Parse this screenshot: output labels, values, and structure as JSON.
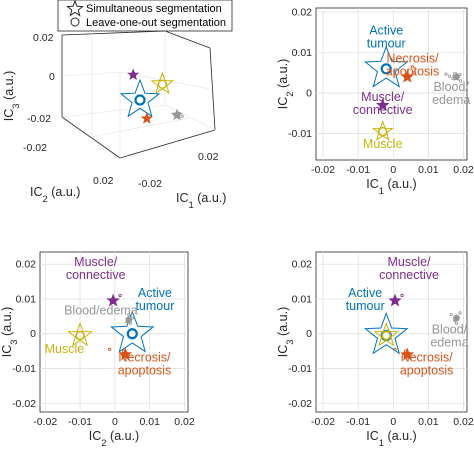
{
  "colors": {
    "active_tumour": "#0072BD",
    "necrosis": "#D95319",
    "muscle_connective": "#7E2F8E",
    "muscle": "#C9B50A",
    "blood": "#969696",
    "grid": "#dcdcdc",
    "axis": "#262626"
  },
  "legend": {
    "star_label": "Simultaneous segmentation",
    "circle_label": "Leave-one-out segmentation"
  },
  "chart_data": [
    {
      "id": "A",
      "type": "scatter3d",
      "xlabel": "IC_1 (a.u.)",
      "ylabel": "IC_2 (a.u.)",
      "zlabel": "IC_3 (a.u.)",
      "xlim": [
        -0.02,
        0.02
      ],
      "ylim": [
        -0.02,
        0.02
      ],
      "zlim": [
        -0.02,
        0.02
      ],
      "x_ticks": [
        "-0.02",
        "0.02"
      ],
      "y_ticks": [
        "-0.02",
        "0.02"
      ],
      "z_ticks": [
        "-0.02",
        "0",
        "0.02"
      ],
      "grid": true,
      "legend_position": "top",
      "series": [
        {
          "key": "active_tumour",
          "star": [
            0,
            0,
            0
          ],
          "circle": [
            0,
            0,
            0
          ]
        },
        {
          "key": "muscle",
          "star": [
            0.001,
            -0.011,
            0.001
          ],
          "circle": [
            0.001,
            -0.011,
            0.001
          ]
        },
        {
          "key": "muscle_connective",
          "star": [
            -0.004,
            -0.002,
            0.009
          ],
          "circle": [
            -0.004,
            -0.002,
            0.009
          ]
        },
        {
          "key": "necrosis",
          "star": [
            0.004,
            0.002,
            -0.006
          ],
          "circle": [
            0.004,
            0.002,
            -0.006
          ]
        },
        {
          "key": "blood",
          "star": [
            0.017,
            0.004,
            0.001
          ],
          "circle": [
            0.017,
            0.004,
            0.001
          ]
        }
      ]
    },
    {
      "id": "B",
      "type": "scatter",
      "xlabel": "IC_1 (a.u.)",
      "ylabel": "IC_2 (a.u.)",
      "xlim": [
        -0.022,
        0.021
      ],
      "ylim": [
        -0.0165,
        0.021
      ],
      "x_ticks": [
        -0.02,
        -0.01,
        0,
        0.01,
        0.02
      ],
      "y_ticks": [
        -0.01,
        0,
        0.01,
        0.02
      ],
      "tick_labels_x": [
        "-0.02",
        "-0.01",
        "0",
        "0.01",
        "0.02"
      ],
      "tick_labels_y": [
        "-0.01",
        "0",
        "0.01",
        "0.02"
      ],
      "grid": true,
      "series": [
        {
          "key": "active_tumour",
          "star": [
            -0.002,
            0.006
          ],
          "circle": [
            -0.002,
            0.006
          ],
          "star_size": 22
        },
        {
          "key": "necrosis",
          "star": [
            0.004,
            0.004
          ],
          "circle": [
            0.004,
            0.004
          ],
          "star_size": 6
        },
        {
          "key": "muscle_connective",
          "star": [
            -0.003,
            -0.003
          ],
          "circle": [
            -0.003,
            -0.003
          ],
          "star_size": 6
        },
        {
          "key": "muscle",
          "star": [
            -0.003,
            -0.0095
          ],
          "circle": [
            -0.003,
            -0.0095
          ],
          "star_size": 10
        },
        {
          "key": "blood",
          "star": [
            0.018,
            0.004
          ],
          "circle": [
            0.018,
            0.004
          ],
          "star_size": 4
        }
      ],
      "labels": [
        {
          "key": "active_tumour",
          "lines": [
            "Active",
            "tumour"
          ],
          "at": [
            -0.002,
            0.0145
          ]
        },
        {
          "key": "necrosis",
          "lines": [
            "Necrosis/",
            "apoptosis"
          ],
          "at": [
            0.0055,
            0.0075
          ]
        },
        {
          "key": "blood",
          "lines": [
            "Blood/",
            "edema"
          ],
          "at": [
            0.0165,
            0.0005
          ]
        },
        {
          "key": "muscle_connective",
          "lines": [
            "Muscle/",
            "connective"
          ],
          "at": [
            -0.003,
            -0.002
          ]
        },
        {
          "key": "muscle",
          "lines": [
            "Muscle"
          ],
          "at": [
            -0.003,
            -0.0135
          ]
        }
      ],
      "outliers": [
        {
          "key": "necrosis",
          "points": [
            [
              0.0055,
              0.0065
            ],
            [
              0.006,
              0.005
            ]
          ]
        },
        {
          "key": "blood",
          "points": [
            [
              0.015,
              0.0047
            ],
            [
              0.016,
              0.0042
            ],
            [
              0.017,
              0.0036
            ],
            [
              0.019,
              0.0046
            ],
            [
              0.0175,
              0.0048
            ],
            [
              0.0192,
              0.003
            ]
          ]
        }
      ]
    },
    {
      "id": "C",
      "type": "scatter",
      "xlabel": "IC_2 (a.u.)",
      "ylabel": "IC_3 (a.u.)",
      "xlim": [
        -0.0215,
        0.021
      ],
      "ylim": [
        -0.0225,
        0.0235
      ],
      "x_ticks": [
        -0.02,
        -0.01,
        0,
        0.01,
        0.02
      ],
      "y_ticks": [
        -0.02,
        -0.01,
        0,
        0.01,
        0.02
      ],
      "tick_labels_x": [
        "-0.02",
        "-0.01",
        "0",
        "0.01",
        "0.02"
      ],
      "tick_labels_y": [
        "-0.02",
        "-0.01",
        "0",
        "0.01",
        "0.02"
      ],
      "grid": true,
      "series": [
        {
          "key": "active_tumour",
          "star": [
            0.005,
            0.0
          ],
          "circle": [
            0.005,
            0.0
          ],
          "star_size": 22
        },
        {
          "key": "muscle",
          "star": [
            -0.01,
            -0.0005
          ],
          "circle": [
            -0.01,
            -0.0005
          ],
          "star_size": 12
        },
        {
          "key": "muscle_connective",
          "star": [
            -0.0005,
            0.0095
          ],
          "circle": [
            -0.0005,
            0.0095
          ],
          "star_size": 6
        },
        {
          "key": "necrosis",
          "star": [
            0.003,
            -0.006
          ],
          "circle": [
            0.003,
            -0.006
          ],
          "star_size": 6
        },
        {
          "key": "blood",
          "star": [
            0.004,
            0.004
          ],
          "circle": [
            0.004,
            0.004
          ],
          "star_size": 3
        }
      ],
      "labels": [
        {
          "key": "muscle_connective",
          "lines": [
            "Muscle/",
            "connective"
          ],
          "at": [
            -0.0055,
            0.0195
          ]
        },
        {
          "key": "active_tumour",
          "lines": [
            "Active",
            "tumour"
          ],
          "at": [
            0.0115,
            0.0105
          ]
        },
        {
          "key": "blood",
          "lines": [
            "Blood/edema"
          ],
          "at": [
            -0.004,
            0.0055
          ]
        },
        {
          "key": "muscle",
          "lines": [
            "Muscle"
          ],
          "at": [
            -0.0145,
            -0.0055
          ]
        },
        {
          "key": "necrosis",
          "lines": [
            "Necrosis/",
            "apoptosis"
          ],
          "at": [
            0.0085,
            -0.008
          ]
        }
      ],
      "outliers": [
        {
          "key": "muscle_connective",
          "points": [
            [
              0.0015,
              0.011
            ]
          ]
        },
        {
          "key": "necrosis",
          "points": [
            [
              -0.0015,
              -0.0045
            ],
            [
              0.0025,
              -0.005
            ]
          ]
        },
        {
          "key": "blood",
          "points": [
            [
              0.004,
              0.0055
            ],
            [
              0.0045,
              0.003
            ],
            [
              0.0035,
              0.0035
            ],
            [
              0.005,
              0.0045
            ]
          ]
        }
      ]
    },
    {
      "id": "D",
      "type": "scatter",
      "xlabel": "IC_1 (a.u.)",
      "ylabel": "IC_3 (a.u.)",
      "xlim": [
        -0.022,
        0.021
      ],
      "ylim": [
        -0.0225,
        0.0235
      ],
      "x_ticks": [
        -0.02,
        -0.01,
        0,
        0.01,
        0.02
      ],
      "y_ticks": [
        -0.02,
        -0.01,
        0,
        0.01,
        0.02
      ],
      "tick_labels_x": [
        "-0.02",
        "-0.01",
        "0",
        "0.01",
        "0.02"
      ],
      "tick_labels_y": [
        "-0.02",
        "-0.01",
        "0",
        "0.01",
        "0.02"
      ],
      "grid": true,
      "series": [
        {
          "key": "active_tumour",
          "star": [
            -0.002,
            -0.0005
          ],
          "circle": [
            -0.002,
            -0.0005
          ],
          "star_size": 22
        },
        {
          "key": "muscle",
          "star": [
            -0.002,
            -0.0005
          ],
          "circle": [
            -0.002,
            -0.0005
          ],
          "star_size": 12
        },
        {
          "key": "muscle_connective",
          "star": [
            0.0005,
            0.0095
          ],
          "circle": [
            0.0005,
            0.0095
          ],
          "star_size": 6
        },
        {
          "key": "necrosis",
          "star": [
            0.004,
            -0.006
          ],
          "circle": [
            0.004,
            -0.006
          ],
          "star_size": 6
        },
        {
          "key": "blood",
          "star": [
            0.018,
            0.0045
          ],
          "circle": [
            0.018,
            0.0045
          ],
          "star_size": 3
        }
      ],
      "labels": [
        {
          "key": "muscle_connective",
          "lines": [
            "Muscle/",
            "connective"
          ],
          "at": [
            0.0045,
            0.0195
          ]
        },
        {
          "key": "active_tumour",
          "lines": [
            "Active",
            "tumour"
          ],
          "at": [
            -0.008,
            0.0105
          ]
        },
        {
          "key": "blood",
          "lines": [
            "Blood/",
            "edema"
          ],
          "at": [
            0.016,
            0.0
          ]
        },
        {
          "key": "necrosis",
          "lines": [
            "Necrosis/",
            "apoptosis"
          ],
          "at": [
            0.0095,
            -0.008
          ]
        }
      ],
      "outliers": [
        {
          "key": "muscle_connective",
          "points": [
            [
              0.0025,
              0.011
            ]
          ]
        },
        {
          "key": "necrosis",
          "points": [
            [
              0.0005,
              -0.0045
            ],
            [
              0.0035,
              -0.005
            ]
          ]
        },
        {
          "key": "blood",
          "points": [
            [
              0.0165,
              0.0055
            ],
            [
              0.0175,
              0.0038
            ],
            [
              0.019,
              0.006
            ],
            [
              0.018,
              0.003
            ]
          ]
        }
      ]
    }
  ]
}
